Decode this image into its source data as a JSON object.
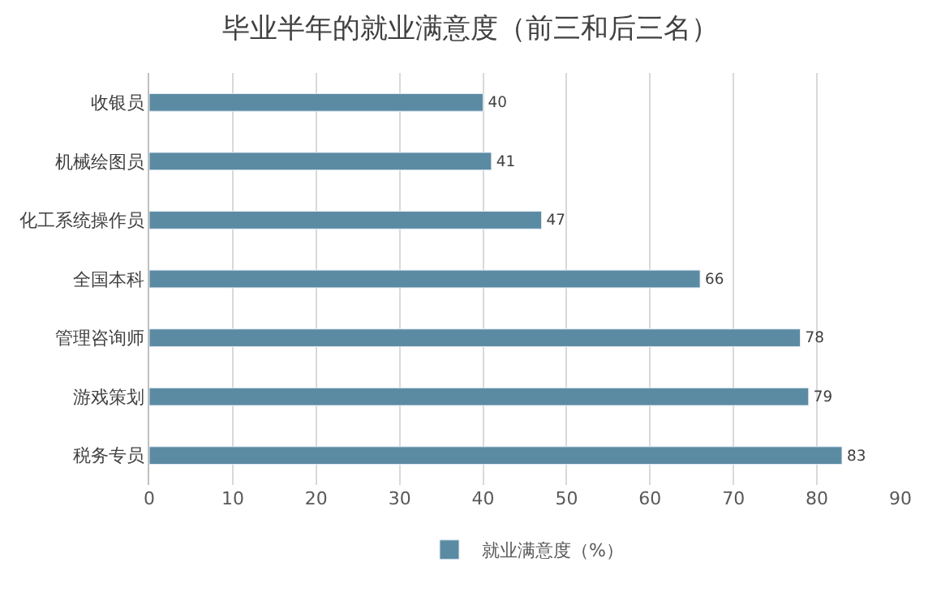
{
  "chart_data": {
    "type": "bar",
    "orientation": "horizontal",
    "title": "毕业半年的就业满意度（前三和后三名）",
    "categories": [
      "收银员",
      "机械绘图员",
      "化工系统操作员",
      "全国本科",
      "管理咨询师",
      "游戏策划",
      "税务专员"
    ],
    "series": [
      {
        "name": "就业满意度（%）",
        "color": "#5b8ba3",
        "values": [
          40,
          41,
          47,
          66,
          78,
          79,
          83
        ]
      }
    ],
    "xlim": [
      0,
      90
    ],
    "xticks": [
      0,
      10,
      20,
      30,
      40,
      50,
      60,
      70,
      80,
      90
    ],
    "grid": "x",
    "legend": "bottom",
    "data_labels": true
  }
}
